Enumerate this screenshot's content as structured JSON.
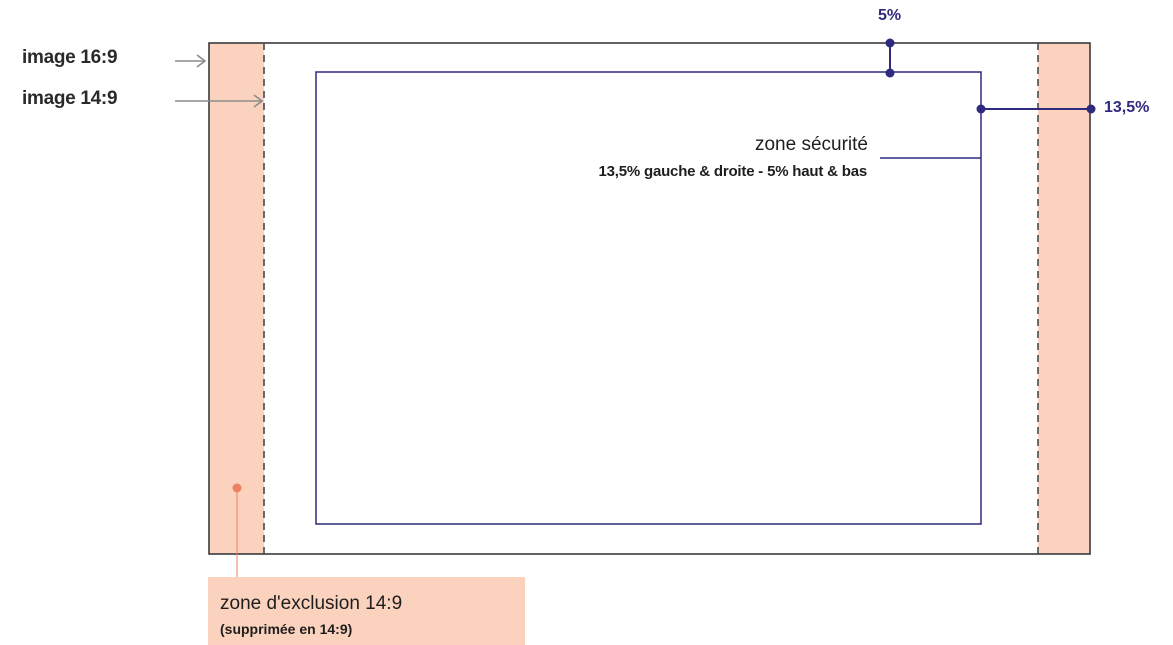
{
  "labels": {
    "image_16_9": "image 16:9",
    "image_14_9": "image 14:9",
    "pct_top": "5%",
    "pct_side": "13,5%",
    "safety_zone_title": "zone sécurité",
    "safety_zone_desc": "13,5% gauche & droite - 5% haut & bas",
    "exclusion_title": "zone d'exclusion 14:9",
    "exclusion_sub": "(supprimée en 14:9)"
  },
  "colors": {
    "frame": "#3a3a3a",
    "exclusion_fill": "#fbd2bd",
    "safety_line": "#2e2a7e",
    "marker": "#2e2a7e",
    "exclusion_dot": "#ee7f63",
    "arrow": "#8c8c8c"
  }
}
